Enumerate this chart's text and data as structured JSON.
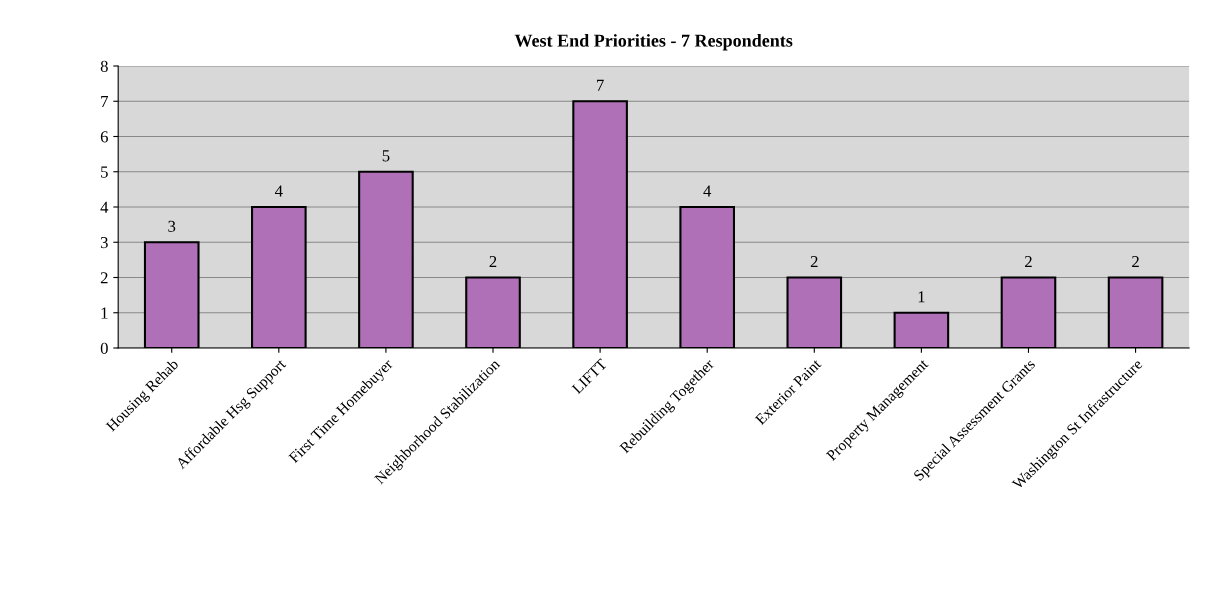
{
  "chart_data": {
    "type": "bar",
    "title": "West End Priorities - 7 Respondents",
    "categories": [
      "Housing Rehab",
      "Affordable Hsg Support",
      "First Time Homebuyer",
      "Neighborhood Stabilization",
      "LIFTT",
      "Rebuilding Together",
      "Exterior Paint",
      "Property Management",
      "Special Assessment Grants",
      "Washington St Infrastructure"
    ],
    "values": [
      3,
      4,
      5,
      2,
      7,
      4,
      2,
      1,
      2,
      2
    ],
    "color": "#b070b8",
    "ylim": [
      0,
      8
    ],
    "yticks": [
      0,
      1,
      2,
      3,
      4,
      5,
      6,
      7,
      8
    ],
    "grid": "y",
    "data_labels": true
  }
}
